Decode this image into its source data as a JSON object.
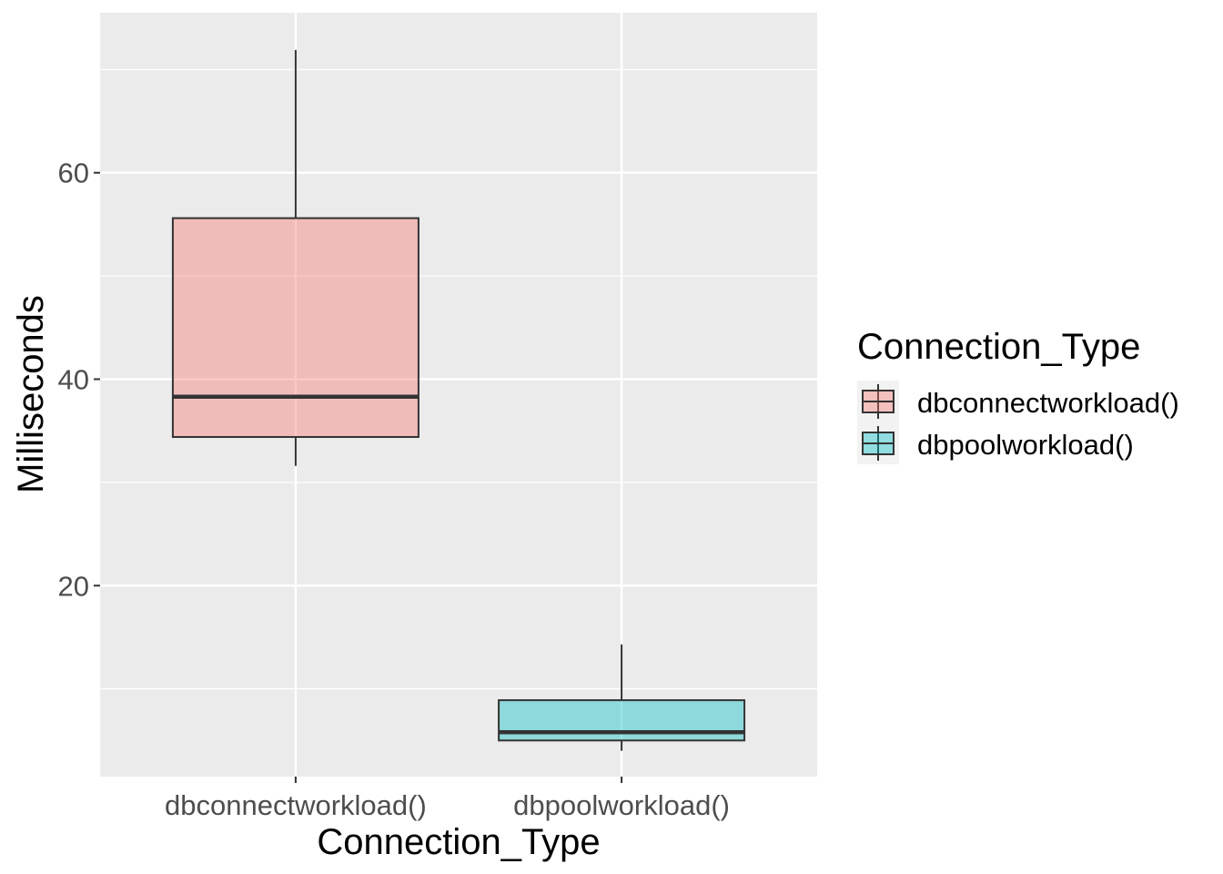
{
  "chart_data": {
    "type": "boxplot",
    "xlabel": "Connection_Type",
    "ylabel": "Milliseconds",
    "categories": [
      "dbconnectworkload()",
      "dbpoolworkload()"
    ],
    "ylim": [
      1.5,
      75.5
    ],
    "yticks": [
      20,
      40,
      60
    ],
    "grid": true,
    "legend": {
      "title": "Connection_Type",
      "position": "right",
      "entries": [
        "dbconnectworkload()",
        "dbpoolworkload()"
      ]
    },
    "boxes": [
      {
        "category": "dbconnectworkload()",
        "whisker_low": 31.6,
        "q1": 34.4,
        "median": 38.3,
        "q3": 55.6,
        "whisker_high": 71.9,
        "color": "#F8766D"
      },
      {
        "category": "dbpoolworkload()",
        "whisker_low": 4.0,
        "q1": 5.0,
        "median": 5.8,
        "q3": 8.9,
        "whisker_high": 14.3,
        "color": "#00BFC4"
      }
    ]
  }
}
